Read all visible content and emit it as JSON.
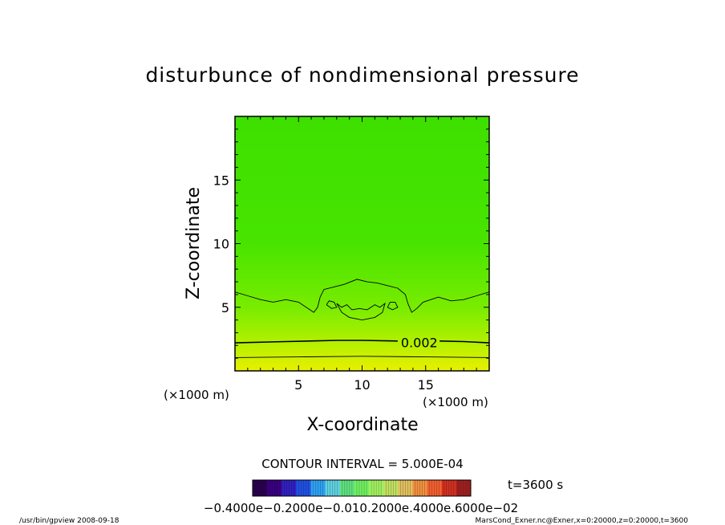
{
  "chart_data": {
    "type": "contour",
    "title": "disturbunce of nondimensional pressure",
    "xlabel": "X-coordinate",
    "ylabel": "Z-coordinate",
    "x_unit": "(×1000 m)",
    "y_unit": "(×1000 m)",
    "xlim": [
      0,
      20
    ],
    "ylim": [
      0,
      20
    ],
    "x_ticks": [
      5,
      10,
      15
    ],
    "y_ticks": [
      5,
      10,
      15
    ],
    "x_tick_labels": [
      "5",
      "10",
      "15"
    ],
    "y_tick_labels": [
      "5",
      "10",
      "15"
    ],
    "fill_gradient": [
      {
        "z": 0,
        "color": "#e8f000"
      },
      {
        "z": 2,
        "color": "#b8f000"
      },
      {
        "z": 5,
        "color": "#78ec00"
      },
      {
        "z": 10,
        "color": "#48e400"
      },
      {
        "z": 20,
        "color": "#3ee000"
      }
    ],
    "contour_labels": [
      {
        "text": "0.002",
        "x": 14.5,
        "z": 2.25
      }
    ],
    "contours": [
      {
        "name": "level-a",
        "points": [
          [
            0,
            1.05
          ],
          [
            5,
            1.1
          ],
          [
            10,
            1.15
          ],
          [
            15,
            1.1
          ],
          [
            20,
            1.05
          ]
        ]
      },
      {
        "name": "level-b-0.002",
        "points": [
          [
            0,
            2.2
          ],
          [
            4,
            2.3
          ],
          [
            8,
            2.4
          ],
          [
            10,
            2.4
          ],
          [
            12.8,
            2.35
          ]
        ],
        "points2": [
          [
            16.1,
            2.35
          ],
          [
            18,
            2.3
          ],
          [
            20,
            2.2
          ]
        ]
      },
      {
        "name": "level-c",
        "points": [
          [
            0,
            6.2
          ],
          [
            1,
            5.9
          ],
          [
            2,
            5.6
          ],
          [
            3,
            5.4
          ],
          [
            4,
            5.6
          ],
          [
            5,
            5.4
          ],
          [
            5.6,
            5.0
          ],
          [
            6.2,
            4.6
          ],
          [
            6.5,
            5.0
          ],
          [
            6.7,
            5.8
          ],
          [
            7.0,
            6.4
          ],
          [
            7.8,
            6.6
          ],
          [
            8.6,
            6.8
          ],
          [
            9.6,
            7.2
          ],
          [
            10.4,
            7.0
          ],
          [
            11.2,
            6.9
          ],
          [
            12.0,
            6.7
          ],
          [
            12.8,
            6.5
          ],
          [
            13.4,
            6.0
          ],
          [
            13.6,
            5.3
          ],
          [
            13.9,
            4.6
          ],
          [
            14.3,
            4.9
          ],
          [
            14.8,
            5.4
          ],
          [
            16,
            5.8
          ],
          [
            17,
            5.5
          ],
          [
            18,
            5.6
          ],
          [
            19,
            5.9
          ],
          [
            20,
            6.2
          ]
        ]
      },
      {
        "name": "level-d",
        "points": [
          [
            8.0,
            5.3
          ],
          [
            8.4,
            5.0
          ],
          [
            8.8,
            5.2
          ],
          [
            9.2,
            4.8
          ],
          [
            9.8,
            4.9
          ],
          [
            10.4,
            4.8
          ],
          [
            11.0,
            5.2
          ],
          [
            11.4,
            5.0
          ],
          [
            11.8,
            5.3
          ],
          [
            11.6,
            4.6
          ],
          [
            11.0,
            4.2
          ],
          [
            10.0,
            4.0
          ],
          [
            9.0,
            4.2
          ],
          [
            8.4,
            4.6
          ],
          [
            8.0,
            5.3
          ]
        ]
      },
      {
        "name": "level-e",
        "points": [
          [
            7.2,
            5.2
          ],
          [
            7.6,
            4.9
          ],
          [
            8.0,
            5.0
          ],
          [
            7.8,
            5.4
          ],
          [
            7.4,
            5.5
          ],
          [
            7.2,
            5.2
          ]
        ]
      },
      {
        "name": "level-f",
        "points": [
          [
            12.0,
            5.0
          ],
          [
            12.4,
            4.8
          ],
          [
            12.8,
            5.0
          ],
          [
            12.6,
            5.4
          ],
          [
            12.2,
            5.4
          ],
          [
            12.0,
            5.0
          ]
        ]
      }
    ],
    "colorbar": {
      "label": "−0.4000e−02",
      "tick_text": "−0.4000e−0.2000e−0.010.2000e.4000e.6000e−02",
      "colors": [
        "#2a0050",
        "#3a0080",
        "#3020c0",
        "#2050e0",
        "#30a0f0",
        "#60d0e0",
        "#60e080",
        "#70f060",
        "#a0f060",
        "#c0e060",
        "#e0c060",
        "#f09040",
        "#f06030",
        "#d03020",
        "#a02020"
      ]
    },
    "annotations": {
      "contour_interval": "CONTOUR INTERVAL = 5.000E-04",
      "time": "t=3600 s",
      "footer_left": "/usr/bin/gpview   2008-09-18",
      "footer_right": "MarsCond_Exner.nc@Exner,x=0:20000,z=0:20000,t=3600"
    }
  }
}
